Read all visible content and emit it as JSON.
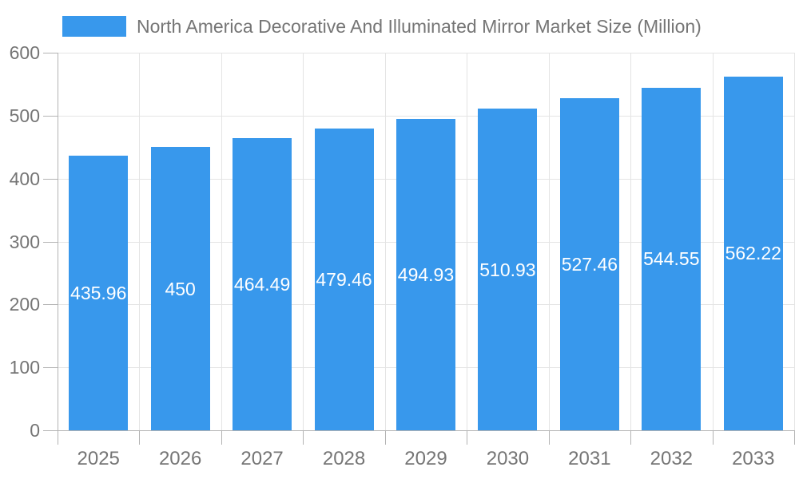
{
  "chart_data": {
    "type": "bar",
    "title": "North America Decorative And Illuminated Mirror Market Size (Million)",
    "legend": {
      "position": "top",
      "entries": [
        "North America Decorative And Illuminated Mirror Market Size (Million)"
      ]
    },
    "categories": [
      "2025",
      "2026",
      "2027",
      "2028",
      "2029",
      "2030",
      "2031",
      "2032",
      "2033"
    ],
    "values": [
      435.96,
      450,
      464.49,
      479.46,
      494.93,
      510.93,
      527.46,
      544.55,
      562.22
    ],
    "value_labels": [
      "435.96",
      "450",
      "464.49",
      "479.46",
      "494.93",
      "510.93",
      "527.46",
      "544.55",
      "562.22"
    ],
    "xlabel": "",
    "ylabel": "",
    "ylim": [
      0,
      600
    ],
    "yticks": [
      0,
      100,
      200,
      300,
      400,
      500,
      600
    ],
    "grid": "on",
    "colors": {
      "bar": "#3898EC",
      "grid": "#e4e4e4",
      "axis": "#b3b3b3",
      "tick_text": "#757575",
      "title_text": "#757575",
      "bar_label_text": "#ffffff",
      "background": "#ffffff"
    }
  }
}
